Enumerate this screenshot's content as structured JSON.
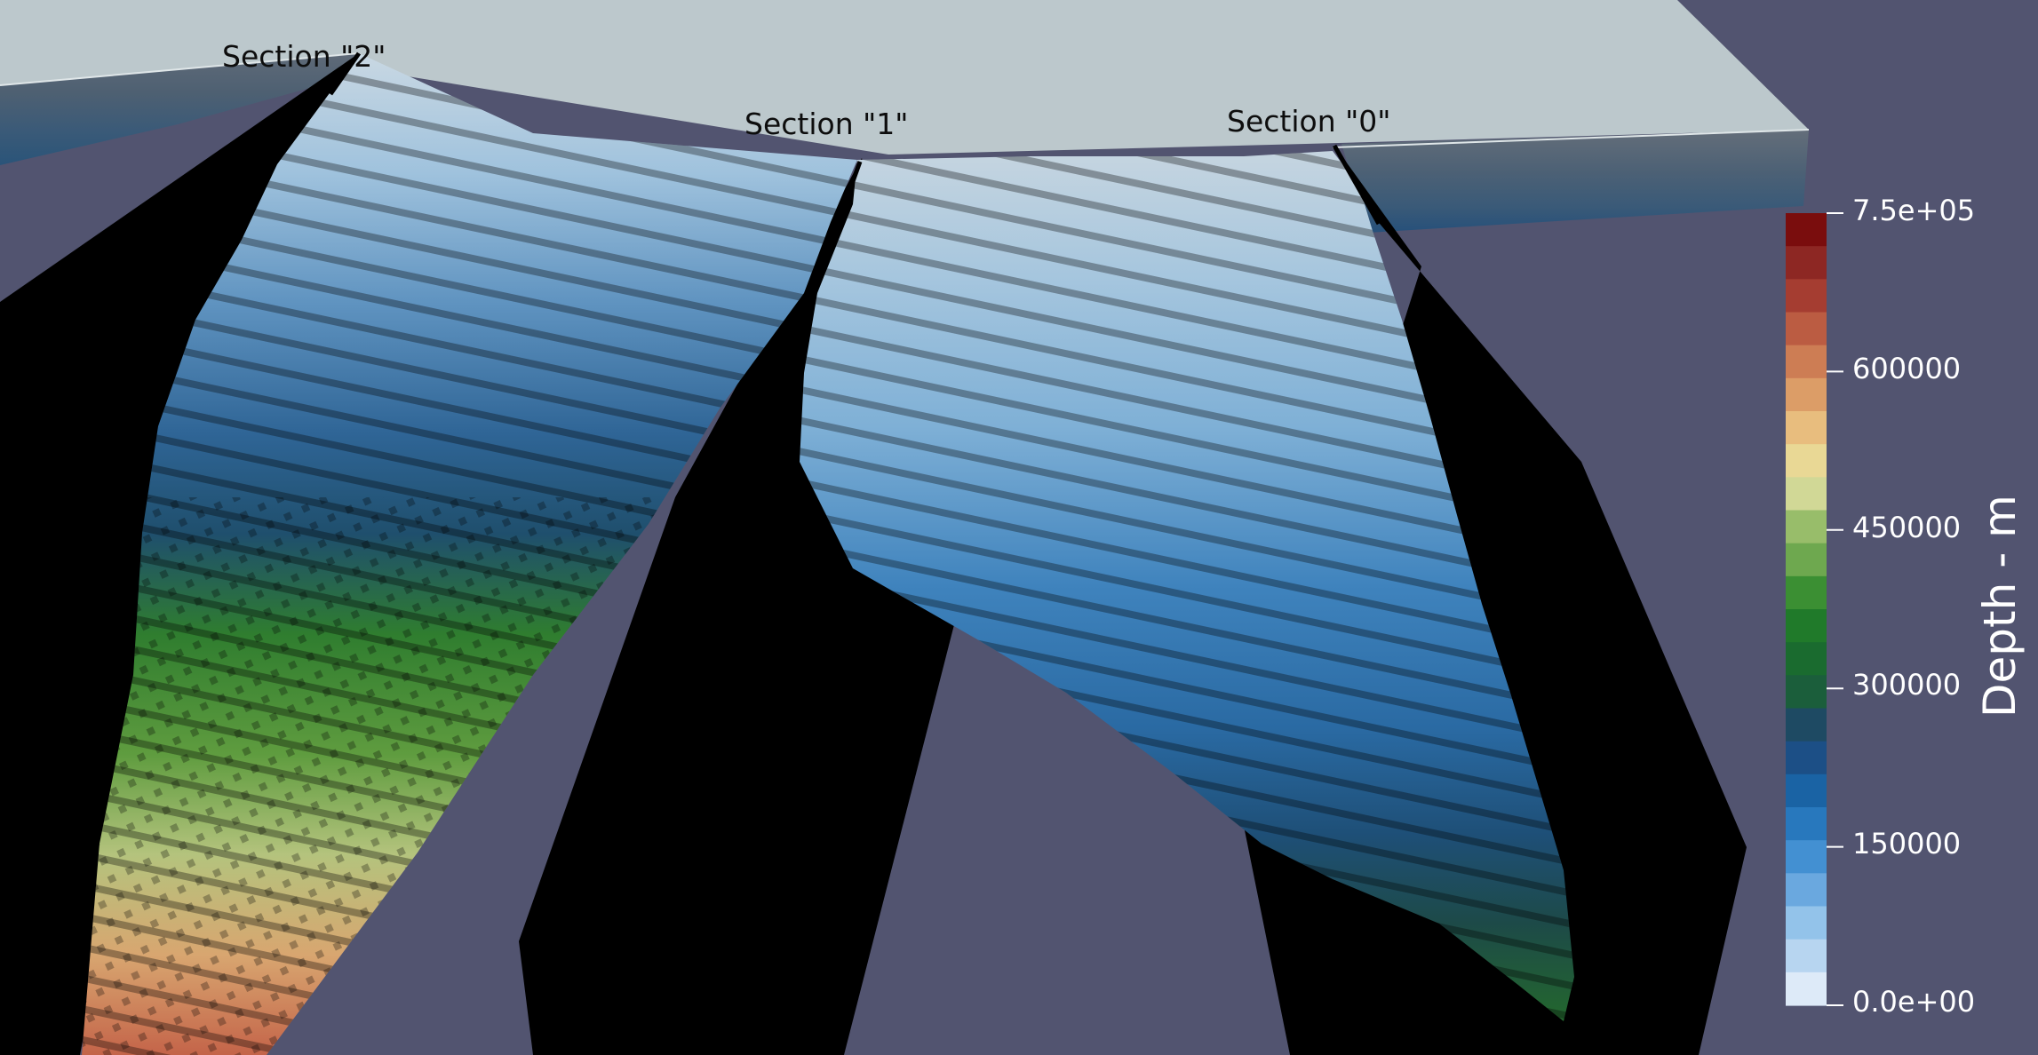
{
  "scene": {
    "background": "#525470",
    "surface_color": "#bcc8cc",
    "shadow_color": "#000000",
    "sections": [
      {
        "label": "Section \"2\""
      },
      {
        "label": "Section \"1\""
      },
      {
        "label": "Section \"0\""
      }
    ]
  },
  "colorbar": {
    "title": "Depth - m",
    "ticks": [
      "7.5e+05",
      "600000",
      "450000",
      "300000",
      "150000",
      "0.0e+00"
    ],
    "min": 0,
    "max": 750000,
    "colors": [
      "#ddeaf8",
      "#b7d5f0",
      "#93c3ea",
      "#6aa8df",
      "#4390d2",
      "#2878bd",
      "#1a63a4",
      "#1c4f86",
      "#1e4a63",
      "#1b5e3b",
      "#1a6b2f",
      "#207a2a",
      "#3b8f33",
      "#6ea84f",
      "#98bd6a",
      "#d1d896",
      "#e9d895",
      "#e8bd7e",
      "#dc9d67",
      "#cd7d54",
      "#bb5c42",
      "#a53d31",
      "#8d2723",
      "#7a0d0d"
    ]
  }
}
